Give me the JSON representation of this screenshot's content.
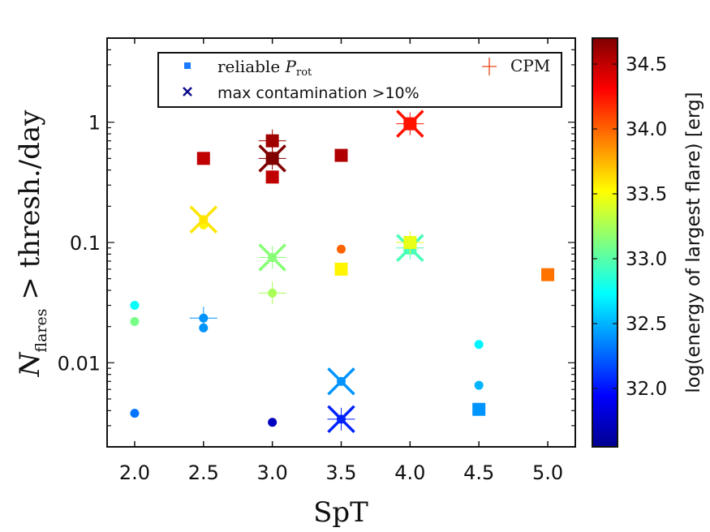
{
  "chart_data": {
    "type": "scatter",
    "xlabel": "SpT",
    "ylabel": {
      "main": "N",
      "sub": "flares",
      "rest": " > thresh./day"
    },
    "x_ticks": [
      "2.0",
      "2.5",
      "3.0",
      "3.5",
      "4.0",
      "4.5",
      "5.0"
    ],
    "xlim": [
      1.8,
      5.2
    ],
    "y_ticks": [
      {
        "value": 0.01,
        "label": "0.01"
      },
      {
        "value": 0.1,
        "label": "0.1"
      },
      {
        "value": 1,
        "label": "1"
      }
    ],
    "ylim": [
      0.002,
      5
    ],
    "yscale": "log",
    "colorbar": {
      "label": "log(energy of largest flare) [erg]",
      "ticks": [
        "32.0",
        "32.5",
        "33.0",
        "33.5",
        "34.0",
        "34.5"
      ],
      "range": [
        31.55,
        34.7
      ]
    },
    "legend": {
      "placement": "top",
      "entries": {
        "reliable_main": "reliable ",
        "reliable_P": "P",
        "reliable_sub": "rot",
        "contamination": "max contamination >10%",
        "cpm": "CPM"
      }
    },
    "points": [
      {
        "x": 2.0,
        "y": 0.0038,
        "energy": 32.3,
        "marker": "circle"
      },
      {
        "x": 2.0,
        "y": 0.022,
        "energy": 33.1,
        "marker": "circle"
      },
      {
        "x": 2.0,
        "y": 0.03,
        "energy": 32.75,
        "marker": "circle"
      },
      {
        "x": 2.5,
        "y": 0.0195,
        "energy": 32.4,
        "marker": "circle"
      },
      {
        "x": 2.5,
        "y": 0.0235,
        "energy": 32.4,
        "marker": "circle",
        "cpm": true
      },
      {
        "x": 2.5,
        "y": 0.14,
        "energy": 33.55,
        "marker": "circle"
      },
      {
        "x": 2.5,
        "y": 0.155,
        "energy": 33.6,
        "marker": "circle",
        "contam": true
      },
      {
        "x": 2.5,
        "y": 0.5,
        "energy": 34.5,
        "marker": "square"
      },
      {
        "x": 3.0,
        "y": 0.0032,
        "energy": 31.75,
        "marker": "circle"
      },
      {
        "x": 3.0,
        "y": 0.038,
        "energy": 33.25,
        "marker": "circle",
        "cpm": true
      },
      {
        "x": 3.0,
        "y": 0.075,
        "energy": 33.15,
        "marker": "circle",
        "contam": true,
        "cpm": true
      },
      {
        "x": 3.0,
        "y": 0.35,
        "energy": 34.5,
        "marker": "square"
      },
      {
        "x": 3.0,
        "y": 0.5,
        "energy": 34.7,
        "marker": "square",
        "contam": true,
        "cpm": true
      },
      {
        "x": 3.0,
        "y": 0.7,
        "energy": 34.6,
        "marker": "square",
        "cpm": true
      },
      {
        "x": 3.5,
        "y": 0.0034,
        "energy": 32.05,
        "marker": "circle",
        "contam": true,
        "cpm": true
      },
      {
        "x": 3.5,
        "y": 0.007,
        "energy": 32.4,
        "marker": "circle",
        "contam": true
      },
      {
        "x": 3.5,
        "y": 0.06,
        "energy": 33.55,
        "marker": "square"
      },
      {
        "x": 3.5,
        "y": 0.088,
        "energy": 34.0,
        "marker": "circle"
      },
      {
        "x": 3.5,
        "y": 0.53,
        "energy": 34.55,
        "marker": "square"
      },
      {
        "x": 4.0,
        "y": 0.09,
        "energy": 32.95,
        "marker": "square",
        "contam": true,
        "cpm": true
      },
      {
        "x": 4.0,
        "y": 0.1,
        "energy": 33.45,
        "marker": "square",
        "cpm": true
      },
      {
        "x": 4.0,
        "y": 0.97,
        "energy": 34.25,
        "marker": "square",
        "contam": true,
        "cpm": true
      },
      {
        "x": 4.5,
        "y": 0.0041,
        "energy": 32.4,
        "marker": "square"
      },
      {
        "x": 4.5,
        "y": 0.0065,
        "energy": 32.5,
        "marker": "circle"
      },
      {
        "x": 4.5,
        "y": 0.0142,
        "energy": 32.7,
        "marker": "circle"
      },
      {
        "x": 5.0,
        "y": 0.054,
        "energy": 33.95,
        "marker": "square"
      }
    ]
  }
}
